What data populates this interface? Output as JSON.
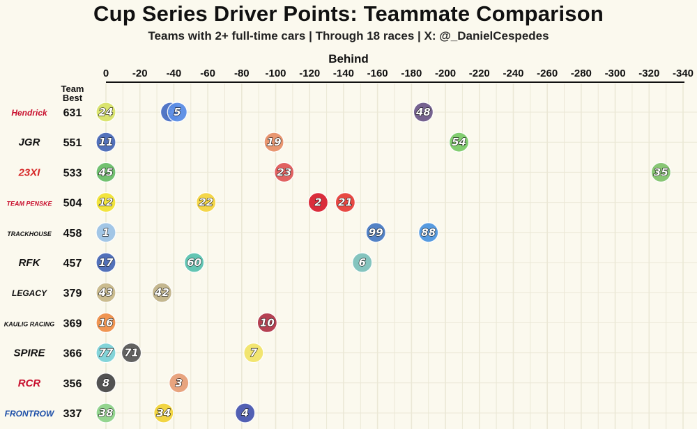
{
  "title": "Cup Series Driver Points: Teammate Comparison",
  "subtitle": "Teams with 2+ full-time cars | Through 18 races | X: @_DanielCespedes",
  "column_header_line1": "Team",
  "column_header_line2": "Best",
  "chart_data": {
    "type": "scatter",
    "title": "Cup Series Driver Points: Teammate Comparison",
    "subtitle": "Teams with 2+ full-time cars | Through 18 races | X: @_DanielCespedes",
    "xlabel": "Behind",
    "xlim": [
      0,
      -340
    ],
    "x_ticks": [
      "0",
      "-20",
      "-40",
      "-60",
      "-80",
      "-100",
      "-120",
      "-140",
      "-160",
      "-180",
      "-200",
      "-220",
      "-240",
      "-260",
      "-280",
      "-300",
      "-320",
      "-340"
    ],
    "x_tick_values": [
      0,
      -20,
      -40,
      -60,
      -80,
      -100,
      -120,
      -140,
      -160,
      -180,
      -200,
      -220,
      -240,
      -260,
      -280,
      -300,
      -320,
      -340
    ],
    "grid": true,
    "teams": [
      {
        "name": "Hendrick Motorsports",
        "logo_text": "Hendrick",
        "best": 631,
        "logo_color": "#c8102e",
        "drivers": [
          {
            "car": "24",
            "behind": 0,
            "color": "#d9e36a"
          },
          {
            "car": "9",
            "behind": -38,
            "color": "#4a6fc4"
          },
          {
            "car": "5",
            "behind": -42,
            "color": "#5b8ee6"
          },
          {
            "car": "48",
            "behind": -187,
            "color": "#6e5a8a"
          }
        ]
      },
      {
        "name": "Joe Gibbs Racing",
        "logo_text": "JGR",
        "best": 551,
        "logo_color": "#111111",
        "drivers": [
          {
            "car": "11",
            "behind": 0,
            "color": "#4a6ab8"
          },
          {
            "car": "19",
            "behind": -99,
            "color": "#e8916a"
          },
          {
            "car": "54",
            "behind": -208,
            "color": "#7ccb6a"
          }
        ]
      },
      {
        "name": "23XI Racing",
        "logo_text": "23XI",
        "best": 533,
        "logo_color": "#d62828",
        "drivers": [
          {
            "car": "45",
            "behind": 0,
            "color": "#6bbf6a"
          },
          {
            "car": "23",
            "behind": -105,
            "color": "#e05a5a"
          },
          {
            "car": "35",
            "behind": -327,
            "color": "#82c46e"
          }
        ]
      },
      {
        "name": "Team Penske",
        "logo_text": "TEAM PENSKE",
        "best": 504,
        "logo_color": "#c8102e",
        "drivers": [
          {
            "car": "12",
            "behind": 0,
            "color": "#f2e335"
          },
          {
            "car": "22",
            "behind": -59,
            "color": "#f4d542"
          },
          {
            "car": "2",
            "behind": -125,
            "color": "#d92332"
          },
          {
            "car": "21",
            "behind": -141,
            "color": "#e7403a"
          }
        ]
      },
      {
        "name": "Trackhouse Racing",
        "logo_text": "TRACKHOUSE",
        "best": 458,
        "logo_color": "#111111",
        "drivers": [
          {
            "car": "1",
            "behind": 0,
            "color": "#9ec4e6"
          },
          {
            "car": "99",
            "behind": -159,
            "color": "#4a7cc4"
          },
          {
            "car": "88",
            "behind": -190,
            "color": "#4f97e0"
          }
        ]
      },
      {
        "name": "RFK Racing",
        "logo_text": "RFK",
        "best": 457,
        "logo_color": "#111111",
        "drivers": [
          {
            "car": "17",
            "behind": 0,
            "color": "#4a6ab8"
          },
          {
            "car": "60",
            "behind": -52,
            "color": "#5bc3b0"
          },
          {
            "car": "6",
            "behind": -151,
            "color": "#7ec2bc"
          }
        ]
      },
      {
        "name": "Legacy Motor Club",
        "logo_text": "LEGACY",
        "best": 379,
        "logo_color": "#111111",
        "drivers": [
          {
            "car": "43",
            "behind": 0,
            "color": "#c9b98a"
          },
          {
            "car": "42",
            "behind": -33,
            "color": "#c2b48a"
          }
        ]
      },
      {
        "name": "Kaulig Racing",
        "logo_text": "KAULIG RACING",
        "best": 369,
        "logo_color": "#111111",
        "drivers": [
          {
            "car": "16",
            "behind": 0,
            "color": "#f0904a"
          },
          {
            "car": "10",
            "behind": -95,
            "color": "#b2384a"
          }
        ]
      },
      {
        "name": "Spire Motorsports",
        "logo_text": "SPIRE",
        "best": 366,
        "logo_color": "#111111",
        "drivers": [
          {
            "car": "77",
            "behind": 0,
            "color": "#7dd3d8"
          },
          {
            "car": "71",
            "behind": -15,
            "color": "#5a5a5a"
          },
          {
            "car": "7",
            "behind": -87,
            "color": "#f2e46a"
          }
        ]
      },
      {
        "name": "Richard Childress Racing",
        "logo_text": "RCR",
        "best": 356,
        "logo_color": "#c8102e",
        "drivers": [
          {
            "car": "8",
            "behind": 0,
            "color": "#4a4a4a"
          },
          {
            "car": "3",
            "behind": -43,
            "color": "#e8a07a"
          }
        ]
      },
      {
        "name": "Front Row Motorsports",
        "logo_text": "FRONTROW",
        "best": 337,
        "logo_color": "#1d4fa8",
        "drivers": [
          {
            "car": "38",
            "behind": 0,
            "color": "#8fd48a"
          },
          {
            "car": "34",
            "behind": -34,
            "color": "#f2d43a"
          },
          {
            "car": "4",
            "behind": -82,
            "color": "#4a58b0"
          }
        ]
      }
    ]
  }
}
